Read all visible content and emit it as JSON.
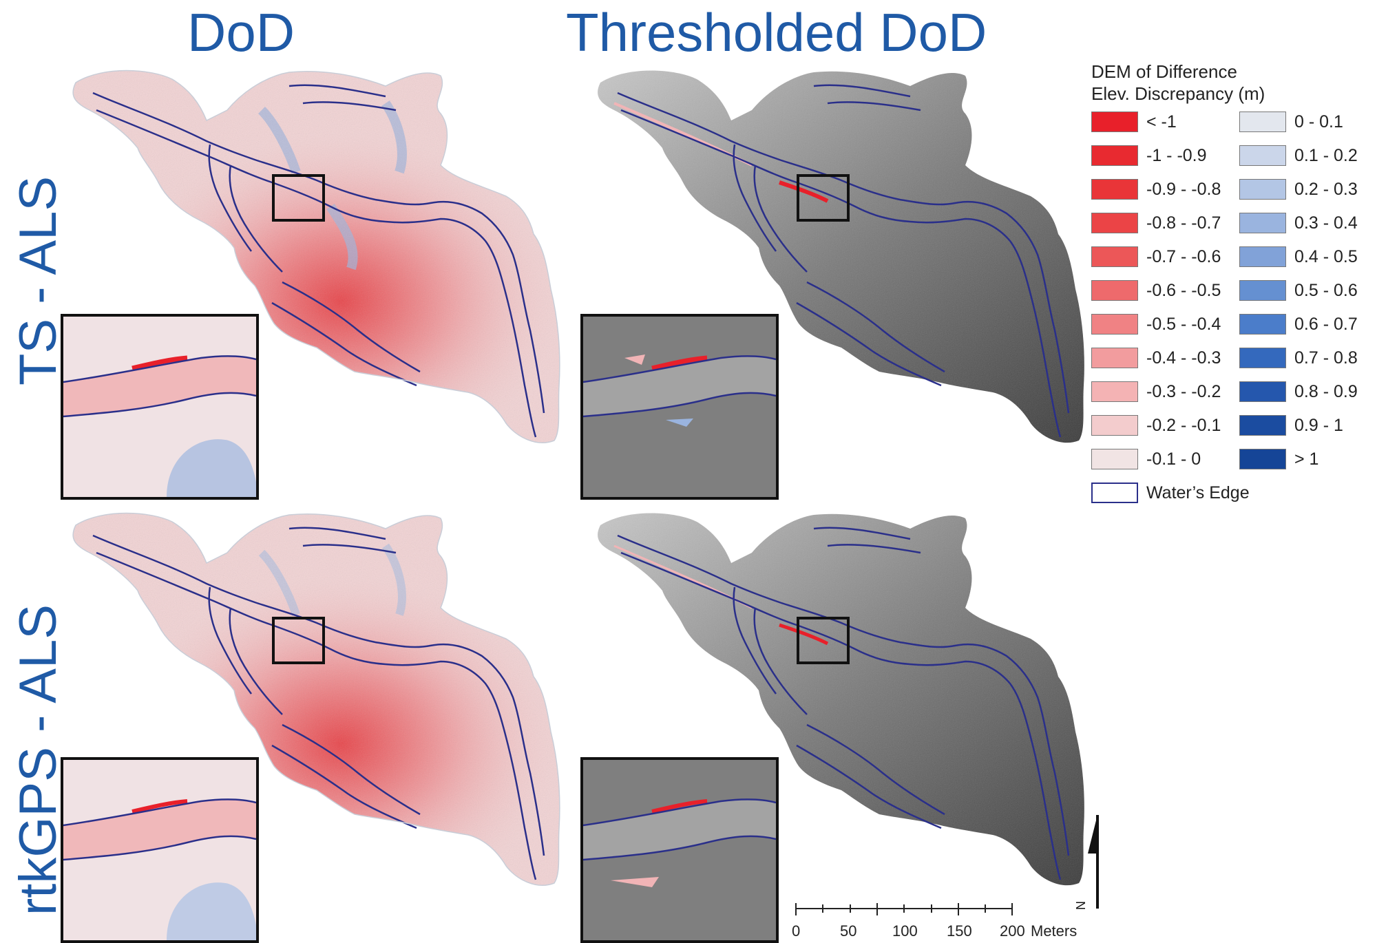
{
  "titles": {
    "col1": "DoD",
    "col2": "Thresholded DoD"
  },
  "rows": {
    "row1": "TS - ALS",
    "row2": "rtkGPS - ALS"
  },
  "legend": {
    "title_line1": "DEM of Difference",
    "title_line2": "Elev. Discrepancy (m)",
    "negative": [
      {
        "label": "< -1",
        "color": "#e8202a"
      },
      {
        "label": "-1 - -0.9",
        "color": "#e82a30"
      },
      {
        "label": "-0.9 - -0.8",
        "color": "#e93538"
      },
      {
        "label": "-0.8 - -0.7",
        "color": "#eb4446"
      },
      {
        "label": "-0.7 - -0.6",
        "color": "#ec5758"
      },
      {
        "label": "-0.6 - -0.5",
        "color": "#ee6a6c"
      },
      {
        "label": "-0.5 - -0.4",
        "color": "#f08284"
      },
      {
        "label": "-0.4 - -0.3",
        "color": "#f29c9e"
      },
      {
        "label": "-0.3 - -0.2",
        "color": "#f4b3b4"
      },
      {
        "label": "-0.2 - -0.1",
        "color": "#f3cccd"
      },
      {
        "label": "-0.1 - 0",
        "color": "#f1e4e4"
      }
    ],
    "positive": [
      {
        "label": "0 - 0.1",
        "color": "#e3e7ee"
      },
      {
        "label": "0.1 - 0.2",
        "color": "#cbd6ea"
      },
      {
        "label": "0.2 - 0.3",
        "color": "#b3c6e5"
      },
      {
        "label": "0.3 - 0.4",
        "color": "#9ab4df"
      },
      {
        "label": "0.4 - 0.5",
        "color": "#81a2d8"
      },
      {
        "label": "0.5 - 0.6",
        "color": "#6590d1"
      },
      {
        "label": "0.6 - 0.7",
        "color": "#4b7dca"
      },
      {
        "label": "0.7 - 0.8",
        "color": "#3469bd"
      },
      {
        "label": "0.8 - 0.9",
        "color": "#2557ad"
      },
      {
        "label": "0.9 - 1",
        "color": "#1b4ca0"
      },
      {
        "label": "> 1",
        "color": "#154597"
      }
    ],
    "water_edge": {
      "label": "Water’s Edge",
      "color": "#2a2f8a"
    }
  },
  "scale": {
    "ticks": [
      "0",
      "50",
      "100",
      "150",
      "200"
    ],
    "unit": "Meters"
  },
  "north": {
    "label": "N"
  }
}
